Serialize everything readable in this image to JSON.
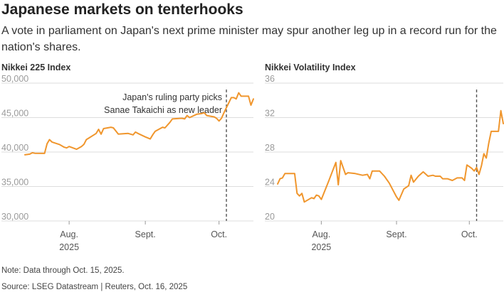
{
  "title": "Japanese markets on tenterhooks",
  "subtitle": "A vote in parliament on Japan's next prime minister may spur another leg up in a record run for the nation's shares.",
  "note": "Note: Data through Oct. 15, 2025.",
  "source": "Source: LSEG Datastream | Reuters, Oct. 16, 2025",
  "colors": {
    "line": "#f0962d",
    "grid": "#dddddd",
    "marker": "#555555"
  },
  "chart_data": [
    {
      "type": "line",
      "title": "Nikkei 225 Index",
      "ylim": [
        30000,
        50000
      ],
      "yticks": [
        30000,
        35000,
        40000,
        45000,
        50000
      ],
      "ytick_labels": [
        "30,000",
        "35,000",
        "40,000",
        "45,000",
        "50,000"
      ],
      "xlim": [
        "2025-07-14",
        "2025-10-15"
      ],
      "xticks": [
        {
          "date": "2025-08-01",
          "label": "Aug.",
          "year": "2025"
        },
        {
          "date": "2025-09-01",
          "label": "Sept.",
          "year": ""
        },
        {
          "date": "2025-10-01",
          "label": "Oct.",
          "year": ""
        }
      ],
      "event": {
        "date": "2025-10-04",
        "label": [
          "Japan's ruling party picks",
          "Sanae Takaichi as new leader"
        ]
      },
      "series": [
        {
          "values": [
            [
              "2025-07-14",
              39600
            ],
            [
              "2025-07-15",
              39650
            ],
            [
              "2025-07-16",
              39700
            ],
            [
              "2025-07-17",
              39900
            ],
            [
              "2025-07-18",
              39820
            ],
            [
              "2025-07-22",
              39800
            ],
            [
              "2025-07-23",
              41200
            ],
            [
              "2025-07-24",
              41800
            ],
            [
              "2025-07-25",
              41450
            ],
            [
              "2025-07-28",
              41100
            ],
            [
              "2025-07-29",
              40900
            ],
            [
              "2025-07-30",
              40700
            ],
            [
              "2025-07-31",
              40600
            ],
            [
              "2025-08-01",
              40800
            ],
            [
              "2025-08-04",
              40400
            ],
            [
              "2025-08-06",
              40800
            ],
            [
              "2025-08-07",
              41100
            ],
            [
              "2025-08-08",
              41800
            ],
            [
              "2025-08-12",
              42700
            ],
            [
              "2025-08-13",
              43300
            ],
            [
              "2025-08-14",
              42600
            ],
            [
              "2025-08-15",
              43400
            ],
            [
              "2025-08-18",
              43600
            ],
            [
              "2025-08-19",
              43500
            ],
            [
              "2025-08-21",
              42600
            ],
            [
              "2025-08-25",
              42700
            ],
            [
              "2025-08-27",
              42500
            ],
            [
              "2025-08-28",
              42900
            ],
            [
              "2025-08-29",
              42700
            ],
            [
              "2025-09-01",
              42200
            ],
            [
              "2025-09-03",
              41900
            ],
            [
              "2025-09-04",
              42500
            ],
            [
              "2025-09-05",
              43000
            ],
            [
              "2025-09-08",
              43600
            ],
            [
              "2025-09-09",
              43500
            ],
            [
              "2025-09-11",
              44300
            ],
            [
              "2025-09-12",
              44800
            ],
            [
              "2025-09-16",
              44900
            ],
            [
              "2025-09-17",
              44800
            ],
            [
              "2025-09-18",
              45300
            ],
            [
              "2025-09-19",
              45000
            ],
            [
              "2025-09-22",
              45500
            ],
            [
              "2025-09-24",
              45600
            ],
            [
              "2025-09-25",
              45700
            ],
            [
              "2025-09-26",
              45300
            ],
            [
              "2025-09-29",
              45100
            ],
            [
              "2025-09-30",
              44900
            ],
            [
              "2025-10-01",
              44500
            ],
            [
              "2025-10-02",
              44900
            ],
            [
              "2025-10-03",
              45700
            ],
            [
              "2025-10-06",
              47900
            ],
            [
              "2025-10-07",
              47900
            ],
            [
              "2025-10-08",
              47700
            ],
            [
              "2025-10-09",
              48600
            ],
            [
              "2025-10-10",
              48100
            ],
            [
              "2025-10-13",
              48100
            ],
            [
              "2025-10-14",
              46800
            ],
            [
              "2025-10-15",
              47700
            ]
          ]
        }
      ]
    },
    {
      "type": "line",
      "title": "Nikkei Volatility Index",
      "ylim": [
        20,
        36
      ],
      "yticks": [
        20,
        24,
        28,
        32,
        36
      ],
      "ytick_labels": [
        "20",
        "24",
        "28",
        "32",
        "36"
      ],
      "xlim": [
        "2025-07-14",
        "2025-10-15"
      ],
      "xticks": [
        {
          "date": "2025-08-01",
          "label": "Aug.",
          "year": "2025"
        },
        {
          "date": "2025-09-01",
          "label": "Sept.",
          "year": ""
        },
        {
          "date": "2025-10-01",
          "label": "Oct.",
          "year": ""
        }
      ],
      "event": {
        "date": "2025-10-04",
        "label": []
      },
      "series": [
        {
          "values": [
            [
              "2025-07-14",
              24.3
            ],
            [
              "2025-07-15",
              24.9
            ],
            [
              "2025-07-16",
              25.0
            ],
            [
              "2025-07-17",
              25.5
            ],
            [
              "2025-07-18",
              25.5
            ],
            [
              "2025-07-21",
              25.5
            ],
            [
              "2025-07-22",
              23.2
            ],
            [
              "2025-07-23",
              22.9
            ],
            [
              "2025-07-24",
              23.2
            ],
            [
              "2025-07-25",
              22.2
            ],
            [
              "2025-07-28",
              22.7
            ],
            [
              "2025-07-29",
              22.6
            ],
            [
              "2025-07-30",
              23.0
            ],
            [
              "2025-07-31",
              22.9
            ],
            [
              "2025-08-01",
              22.5
            ],
            [
              "2025-08-04",
              24.6
            ],
            [
              "2025-08-07",
              26.8
            ],
            [
              "2025-08-08",
              24.2
            ],
            [
              "2025-08-09",
              27.0
            ],
            [
              "2025-08-11",
              25.4
            ],
            [
              "2025-08-12",
              25.6
            ],
            [
              "2025-08-15",
              25.5
            ],
            [
              "2025-08-18",
              25.3
            ],
            [
              "2025-08-20",
              25.4
            ],
            [
              "2025-08-21",
              24.9
            ],
            [
              "2025-08-22",
              25.8
            ],
            [
              "2025-08-25",
              25.8
            ],
            [
              "2025-08-27",
              25.2
            ],
            [
              "2025-08-29",
              24.4
            ],
            [
              "2025-09-01",
              22.8
            ],
            [
              "2025-09-02",
              22.4
            ],
            [
              "2025-09-04",
              23.7
            ],
            [
              "2025-09-05",
              23.9
            ],
            [
              "2025-09-06",
              24.1
            ],
            [
              "2025-09-07",
              25.3
            ],
            [
              "2025-09-08",
              24.5
            ],
            [
              "2025-09-10",
              25.2
            ],
            [
              "2025-09-12",
              25.7
            ],
            [
              "2025-09-14",
              25.2
            ],
            [
              "2025-09-16",
              25.3
            ],
            [
              "2025-09-17",
              25.2
            ],
            [
              "2025-09-19",
              25.2
            ],
            [
              "2025-09-20",
              24.9
            ],
            [
              "2025-09-22",
              24.9
            ],
            [
              "2025-09-24",
              24.7
            ],
            [
              "2025-09-26",
              25.0
            ],
            [
              "2025-09-28",
              25.0
            ],
            [
              "2025-09-29",
              24.7
            ],
            [
              "2025-09-30",
              26.5
            ],
            [
              "2025-10-01",
              26.3
            ],
            [
              "2025-10-02",
              26.1
            ],
            [
              "2025-10-03",
              25.8
            ],
            [
              "2025-10-04",
              26.2
            ],
            [
              "2025-10-05",
              25.4
            ],
            [
              "2025-10-06",
              26.4
            ],
            [
              "2025-10-07",
              27.8
            ],
            [
              "2025-10-08",
              27.3
            ],
            [
              "2025-10-09",
              29.0
            ],
            [
              "2025-10-10",
              30.4
            ],
            [
              "2025-10-11",
              30.4
            ],
            [
              "2025-10-13",
              30.4
            ],
            [
              "2025-10-14",
              32.8
            ],
            [
              "2025-10-15",
              31.3
            ]
          ]
        }
      ]
    }
  ]
}
